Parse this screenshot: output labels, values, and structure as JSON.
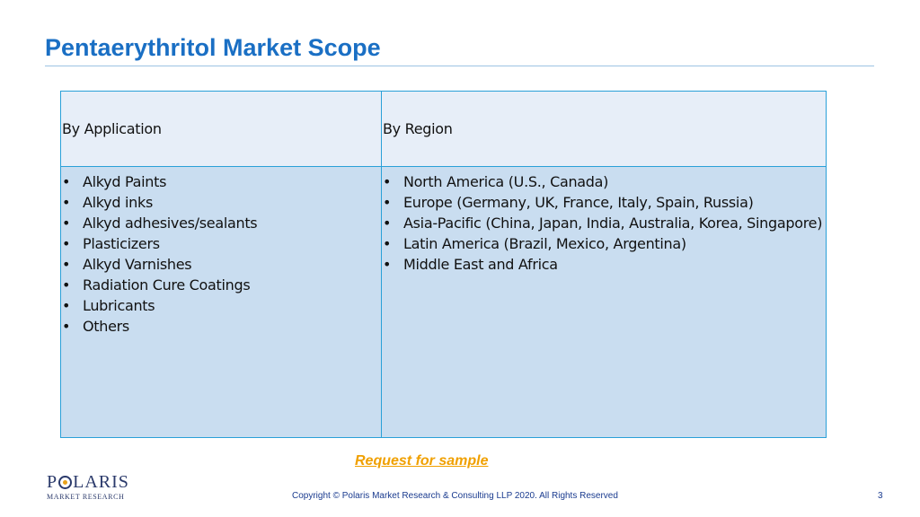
{
  "title": "Pentaerythritol Market Scope",
  "table": {
    "columns": [
      {
        "header": "By Application",
        "items": [
          "Alkyd Paints",
          "Alkyd inks",
          "Alkyd adhesives/sealants",
          "Plasticizers",
          "Alkyd Varnishes",
          "Radiation Cure Coatings",
          "Lubricants",
          "Others"
        ]
      },
      {
        "header": "By Region",
        "items": [
          "North America (U.S., Canada)",
          "Europe (Germany, UK, France, Italy, Spain, Russia)",
          "Asia-Pacific (China, Japan, India, Australia, Korea, Singapore)",
          "Latin America (Brazil, Mexico, Argentina)",
          "Middle East and Africa"
        ]
      }
    ],
    "bullet": "•"
  },
  "request_link": "Request for sample",
  "logo": {
    "main_left": "P",
    "main_right": "LARIS",
    "sub": "MARKET RESEARCH"
  },
  "footer": {
    "copyright": "Copyright © Polaris Market Research & Consulting LLP 2020. All Rights Reserved",
    "page_number": "3"
  },
  "colors": {
    "title": "#1a6fc4",
    "border": "#2aa0d8",
    "header_bg": "#e7eef8",
    "body_bg": "#c9ddf0",
    "link": "#f0a000"
  }
}
